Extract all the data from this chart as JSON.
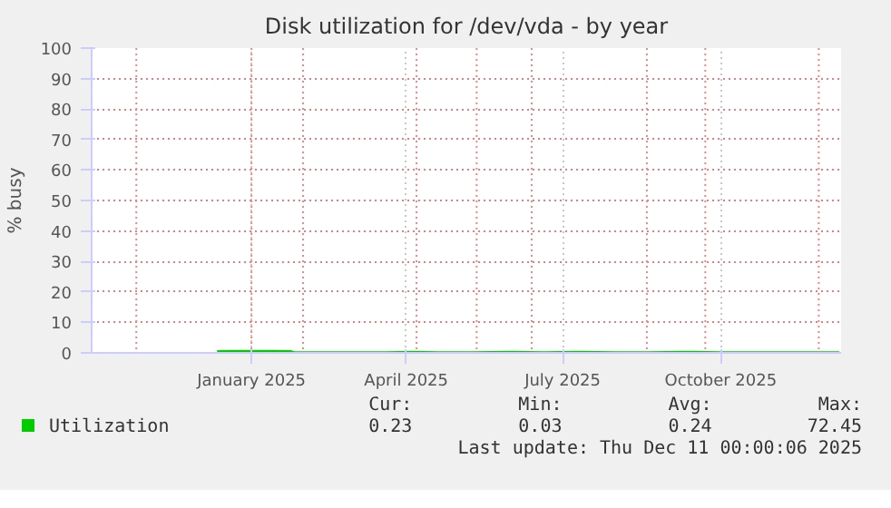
{
  "chart_data": {
    "type": "line",
    "title": "Disk utilization for /dev/vda - by year",
    "ylabel": "% busy",
    "x": [
      "2024-12-12",
      "2024-12-20",
      "2025-01-01",
      "2025-01-15",
      "2025-01-24",
      "2025-01-26",
      "2025-02-10",
      "2025-03-01",
      "2025-03-20",
      "2025-04-05",
      "2025-04-20",
      "2025-05-10",
      "2025-06-01",
      "2025-06-20",
      "2025-07-10",
      "2025-08-01",
      "2025-08-20",
      "2025-09-10",
      "2025-10-01",
      "2025-10-20",
      "2025-11-10",
      "2025-12-09"
    ],
    "series": [
      {
        "name": "Utilization",
        "color": "#00cc00",
        "values": [
          0.5,
          0.6,
          0.6,
          0.6,
          0.5,
          0.2,
          0.2,
          0.2,
          0.2,
          0.3,
          0.2,
          0.2,
          0.3,
          0.2,
          0.3,
          0.2,
          0.2,
          0.3,
          0.2,
          0.2,
          0.2,
          0.2
        ]
      }
    ],
    "xlim": [
      "2024-09-30",
      "2025-12-10"
    ],
    "xticks": [
      {
        "value": "2025-01-01",
        "label": "January 2025"
      },
      {
        "value": "2025-04-01",
        "label": "April 2025"
      },
      {
        "value": "2025-07-01",
        "label": "July 2025"
      },
      {
        "value": "2025-10-01",
        "label": "October 2025"
      }
    ],
    "ylim": [
      0,
      100
    ],
    "yticks": [
      0,
      10,
      20,
      30,
      40,
      50,
      60,
      70,
      80,
      90,
      100
    ],
    "grid": true,
    "legend": "bottom",
    "ref_lines": [
      {
        "axis": "x",
        "value": "2024-10-26",
        "label": null,
        "color": "#ff8080",
        "line_style": "dotted"
      },
      {
        "axis": "x",
        "value": "2025-01-01",
        "label": null,
        "color": "#ff8080",
        "line_style": "dotted"
      },
      {
        "axis": "x",
        "value": "2025-01-31",
        "label": null,
        "color": "#ff8080",
        "line_style": "dotted"
      },
      {
        "axis": "x",
        "value": "2025-04-07",
        "label": null,
        "color": "#ff8080",
        "line_style": "dotted"
      },
      {
        "axis": "x",
        "value": "2025-05-12",
        "label": null,
        "color": "#ff8080",
        "line_style": "dotted"
      },
      {
        "axis": "x",
        "value": "2025-06-13",
        "label": null,
        "color": "#ff8080",
        "line_style": "dotted"
      },
      {
        "axis": "x",
        "value": "2025-08-19",
        "label": null,
        "color": "#ff8080",
        "line_style": "dotted"
      },
      {
        "axis": "x",
        "value": "2025-09-22",
        "label": null,
        "color": "#ff8080",
        "line_style": "dotted"
      },
      {
        "axis": "x",
        "value": "2025-11-27",
        "label": null,
        "color": "#ff8080",
        "line_style": "dotted"
      }
    ],
    "annotations": [
      "Cur:",
      "Min:",
      "Avg:",
      "Max:",
      "0.23",
      "0.03",
      "0.24",
      "72.45",
      "Last update: Thu Dec 11 00:00:06 2025"
    ]
  }
}
